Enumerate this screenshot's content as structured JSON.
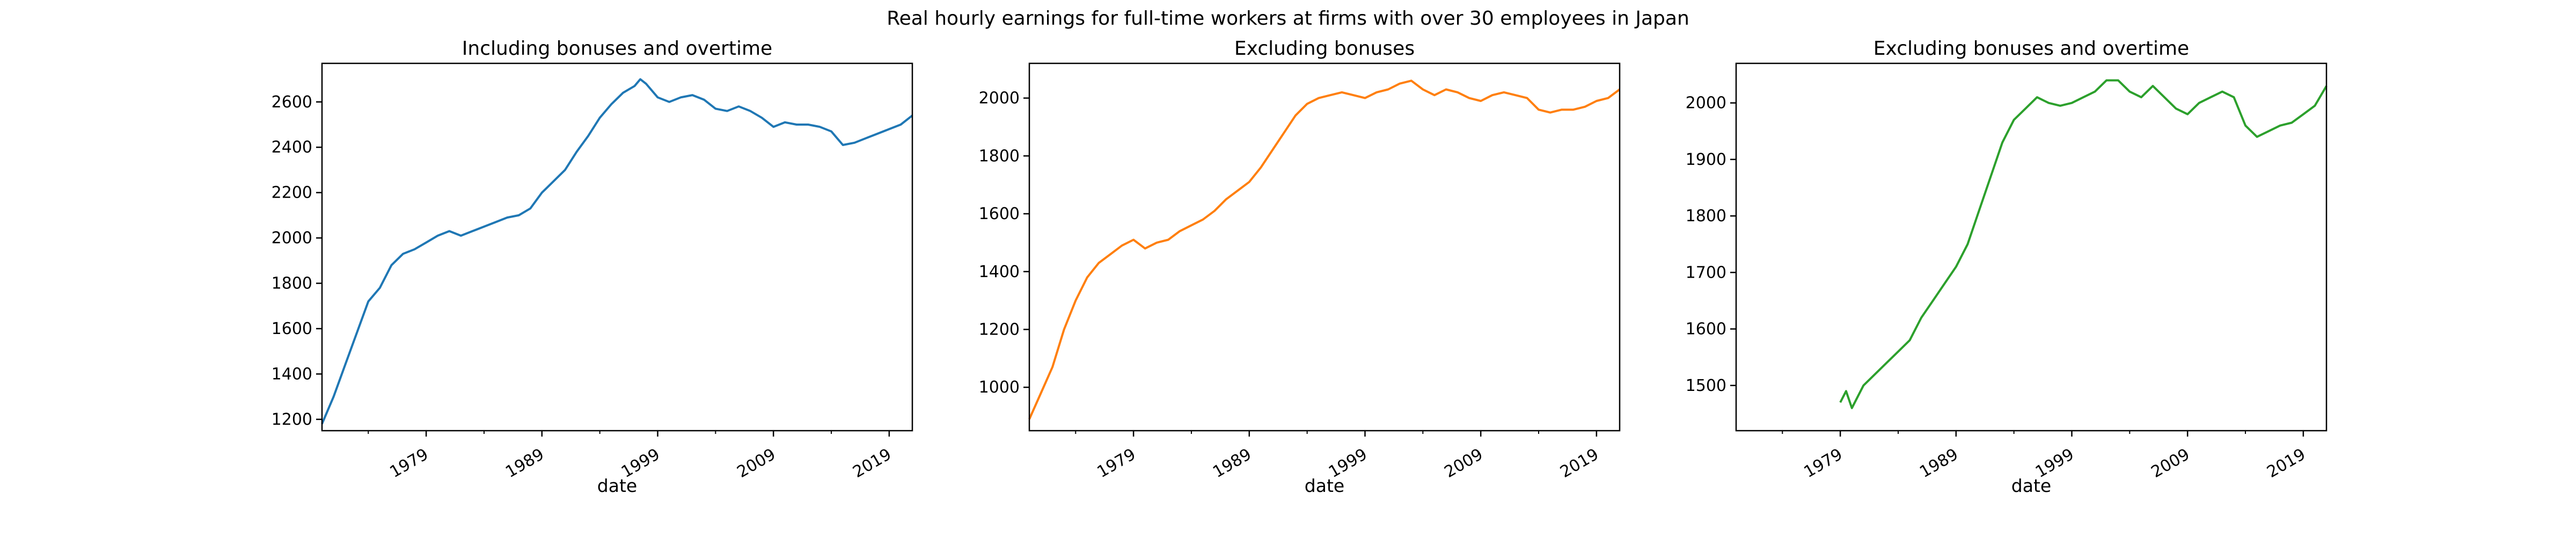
{
  "figure": {
    "suptitle": "Real hourly earnings for full-time workers at firms with over 30 employees in Japan"
  },
  "chart_data": [
    {
      "type": "line",
      "title": "Including bonuses and overtime",
      "xlabel": "date",
      "ylabel": "",
      "color": "#1f77b4",
      "xlim": [
        "1970-01",
        "2021-01"
      ],
      "ylim": [
        1150,
        2770
      ],
      "xticks": [
        1979,
        1989,
        1999,
        2009,
        2019
      ],
      "yticks": [
        1200,
        1400,
        1600,
        1800,
        2000,
        2200,
        2400,
        2600
      ],
      "series": [
        {
          "points": [
            [
              "1970-01",
              1180
            ],
            [
              "1971-01",
              1300
            ],
            [
              "1972-01",
              1440
            ],
            [
              "1973-01",
              1580
            ],
            [
              "1974-01",
              1720
            ],
            [
              "1975-01",
              1780
            ],
            [
              "1976-01",
              1880
            ],
            [
              "1977-01",
              1930
            ],
            [
              "1978-01",
              1950
            ],
            [
              "1979-01",
              1980
            ],
            [
              "1980-01",
              2010
            ],
            [
              "1981-01",
              2030
            ],
            [
              "1982-01",
              2010
            ],
            [
              "1983-01",
              2030
            ],
            [
              "1984-01",
              2050
            ],
            [
              "1985-01",
              2070
            ],
            [
              "1986-01",
              2090
            ],
            [
              "1987-01",
              2100
            ],
            [
              "1988-01",
              2130
            ],
            [
              "1989-01",
              2200
            ],
            [
              "1990-01",
              2250
            ],
            [
              "1991-01",
              2300
            ],
            [
              "1992-01",
              2380
            ],
            [
              "1993-01",
              2450
            ],
            [
              "1994-01",
              2530
            ],
            [
              "1995-01",
              2590
            ],
            [
              "1996-01",
              2640
            ],
            [
              "1997-01",
              2670
            ],
            [
              "1997-07",
              2700
            ],
            [
              "1998-01",
              2680
            ],
            [
              "1999-01",
              2620
            ],
            [
              "2000-01",
              2600
            ],
            [
              "2001-01",
              2620
            ],
            [
              "2002-01",
              2630
            ],
            [
              "2003-01",
              2610
            ],
            [
              "2004-01",
              2570
            ],
            [
              "2005-01",
              2560
            ],
            [
              "2006-01",
              2580
            ],
            [
              "2007-01",
              2560
            ],
            [
              "2008-01",
              2530
            ],
            [
              "2009-01",
              2490
            ],
            [
              "2010-01",
              2510
            ],
            [
              "2011-01",
              2500
            ],
            [
              "2012-01",
              2500
            ],
            [
              "2013-01",
              2490
            ],
            [
              "2014-01",
              2470
            ],
            [
              "2015-01",
              2410
            ],
            [
              "2016-01",
              2420
            ],
            [
              "2017-01",
              2440
            ],
            [
              "2018-01",
              2460
            ],
            [
              "2019-01",
              2480
            ],
            [
              "2020-01",
              2500
            ],
            [
              "2021-01",
              2540
            ]
          ]
        }
      ]
    },
    {
      "type": "line",
      "title": "Excluding bonuses",
      "xlabel": "date",
      "ylabel": "",
      "color": "#ff7f0e",
      "xlim": [
        "1970-01",
        "2021-01"
      ],
      "ylim": [
        850,
        2120
      ],
      "xticks": [
        1979,
        1989,
        1999,
        2009,
        2019
      ],
      "yticks": [
        1000,
        1200,
        1400,
        1600,
        1800,
        2000
      ],
      "series": [
        {
          "points": [
            [
              "1970-01",
              890
            ],
            [
              "1971-01",
              980
            ],
            [
              "1972-01",
              1070
            ],
            [
              "1973-01",
              1200
            ],
            [
              "1974-01",
              1300
            ],
            [
              "1975-01",
              1380
            ],
            [
              "1976-01",
              1430
            ],
            [
              "1977-01",
              1460
            ],
            [
              "1978-01",
              1490
            ],
            [
              "1979-01",
              1510
            ],
            [
              "1980-01",
              1480
            ],
            [
              "1981-01",
              1500
            ],
            [
              "1982-01",
              1510
            ],
            [
              "1983-01",
              1540
            ],
            [
              "1984-01",
              1560
            ],
            [
              "1985-01",
              1580
            ],
            [
              "1986-01",
              1610
            ],
            [
              "1987-01",
              1650
            ],
            [
              "1988-01",
              1680
            ],
            [
              "1989-01",
              1710
            ],
            [
              "1990-01",
              1760
            ],
            [
              "1991-01",
              1820
            ],
            [
              "1992-01",
              1880
            ],
            [
              "1993-01",
              1940
            ],
            [
              "1994-01",
              1980
            ],
            [
              "1995-01",
              2000
            ],
            [
              "1996-01",
              2010
            ],
            [
              "1997-01",
              2020
            ],
            [
              "1998-01",
              2010
            ],
            [
              "1999-01",
              2000
            ],
            [
              "2000-01",
              2020
            ],
            [
              "2001-01",
              2030
            ],
            [
              "2002-01",
              2050
            ],
            [
              "2003-01",
              2060
            ],
            [
              "2004-01",
              2030
            ],
            [
              "2005-01",
              2010
            ],
            [
              "2006-01",
              2030
            ],
            [
              "2007-01",
              2020
            ],
            [
              "2008-01",
              2000
            ],
            [
              "2009-01",
              1990
            ],
            [
              "2010-01",
              2010
            ],
            [
              "2011-01",
              2020
            ],
            [
              "2012-01",
              2010
            ],
            [
              "2013-01",
              2000
            ],
            [
              "2014-01",
              1960
            ],
            [
              "2015-01",
              1950
            ],
            [
              "2016-01",
              1960
            ],
            [
              "2017-01",
              1960
            ],
            [
              "2018-01",
              1970
            ],
            [
              "2019-01",
              1990
            ],
            [
              "2020-01",
              2000
            ],
            [
              "2021-01",
              2030
            ]
          ]
        }
      ]
    },
    {
      "type": "line",
      "title": "Excluding bonuses and overtime",
      "xlabel": "date",
      "ylabel": "",
      "color": "#2ca02c",
      "xlim": [
        "1970-01",
        "2021-01"
      ],
      "ylim": [
        1420,
        2070
      ],
      "xticks": [
        1979,
        1989,
        1999,
        2009,
        2019
      ],
      "yticks": [
        1500,
        1600,
        1700,
        1800,
        1900,
        2000
      ],
      "series": [
        {
          "points": [
            [
              "1979-01",
              1470
            ],
            [
              "1979-07",
              1490
            ],
            [
              "1980-01",
              1460
            ],
            [
              "1981-01",
              1500
            ],
            [
              "1982-01",
              1520
            ],
            [
              "1983-01",
              1540
            ],
            [
              "1984-01",
              1560
            ],
            [
              "1985-01",
              1580
            ],
            [
              "1986-01",
              1620
            ],
            [
              "1987-01",
              1650
            ],
            [
              "1988-01",
              1680
            ],
            [
              "1989-01",
              1710
            ],
            [
              "1990-01",
              1750
            ],
            [
              "1991-01",
              1810
            ],
            [
              "1992-01",
              1870
            ],
            [
              "1993-01",
              1930
            ],
            [
              "1994-01",
              1970
            ],
            [
              "1995-01",
              1990
            ],
            [
              "1996-01",
              2010
            ],
            [
              "1997-01",
              2000
            ],
            [
              "1998-01",
              1995
            ],
            [
              "1999-01",
              2000
            ],
            [
              "2000-01",
              2010
            ],
            [
              "2001-01",
              2020
            ],
            [
              "2002-01",
              2040
            ],
            [
              "2003-01",
              2040
            ],
            [
              "2004-01",
              2020
            ],
            [
              "2005-01",
              2010
            ],
            [
              "2006-01",
              2030
            ],
            [
              "2007-01",
              2010
            ],
            [
              "2008-01",
              1990
            ],
            [
              "2009-01",
              1980
            ],
            [
              "2010-01",
              2000
            ],
            [
              "2011-01",
              2010
            ],
            [
              "2012-01",
              2020
            ],
            [
              "2013-01",
              2010
            ],
            [
              "2014-01",
              1960
            ],
            [
              "2015-01",
              1940
            ],
            [
              "2016-01",
              1950
            ],
            [
              "2017-01",
              1960
            ],
            [
              "2018-01",
              1965
            ],
            [
              "2019-01",
              1980
            ],
            [
              "2020-01",
              1995
            ],
            [
              "2021-01",
              2030
            ]
          ]
        }
      ]
    }
  ]
}
